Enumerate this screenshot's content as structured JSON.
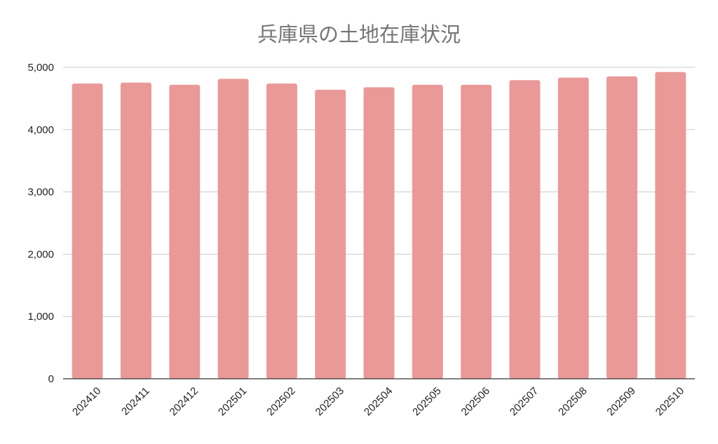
{
  "chart_data": {
    "type": "bar",
    "title": "兵庫県の土地在庫状況",
    "xlabel": "",
    "ylabel": "",
    "categories": [
      "202410",
      "202411",
      "202412",
      "202501",
      "202502",
      "202503",
      "202504",
      "202505",
      "202506",
      "202507",
      "202508",
      "202509",
      "202510"
    ],
    "values": [
      4740,
      4755,
      4720,
      4815,
      4740,
      4640,
      4680,
      4720,
      4720,
      4795,
      4835,
      4855,
      4925
    ],
    "ylim": [
      0,
      5000
    ],
    "yticks": [
      0,
      1000,
      2000,
      3000,
      4000,
      5000
    ],
    "ytick_labels": [
      "0",
      "1,000",
      "2,000",
      "3,000",
      "4,000",
      "5,000"
    ],
    "grid": true,
    "legend": "none",
    "bar_color": "#ea9999",
    "grid_color": "#cccccc",
    "axis_color": "#333333"
  }
}
